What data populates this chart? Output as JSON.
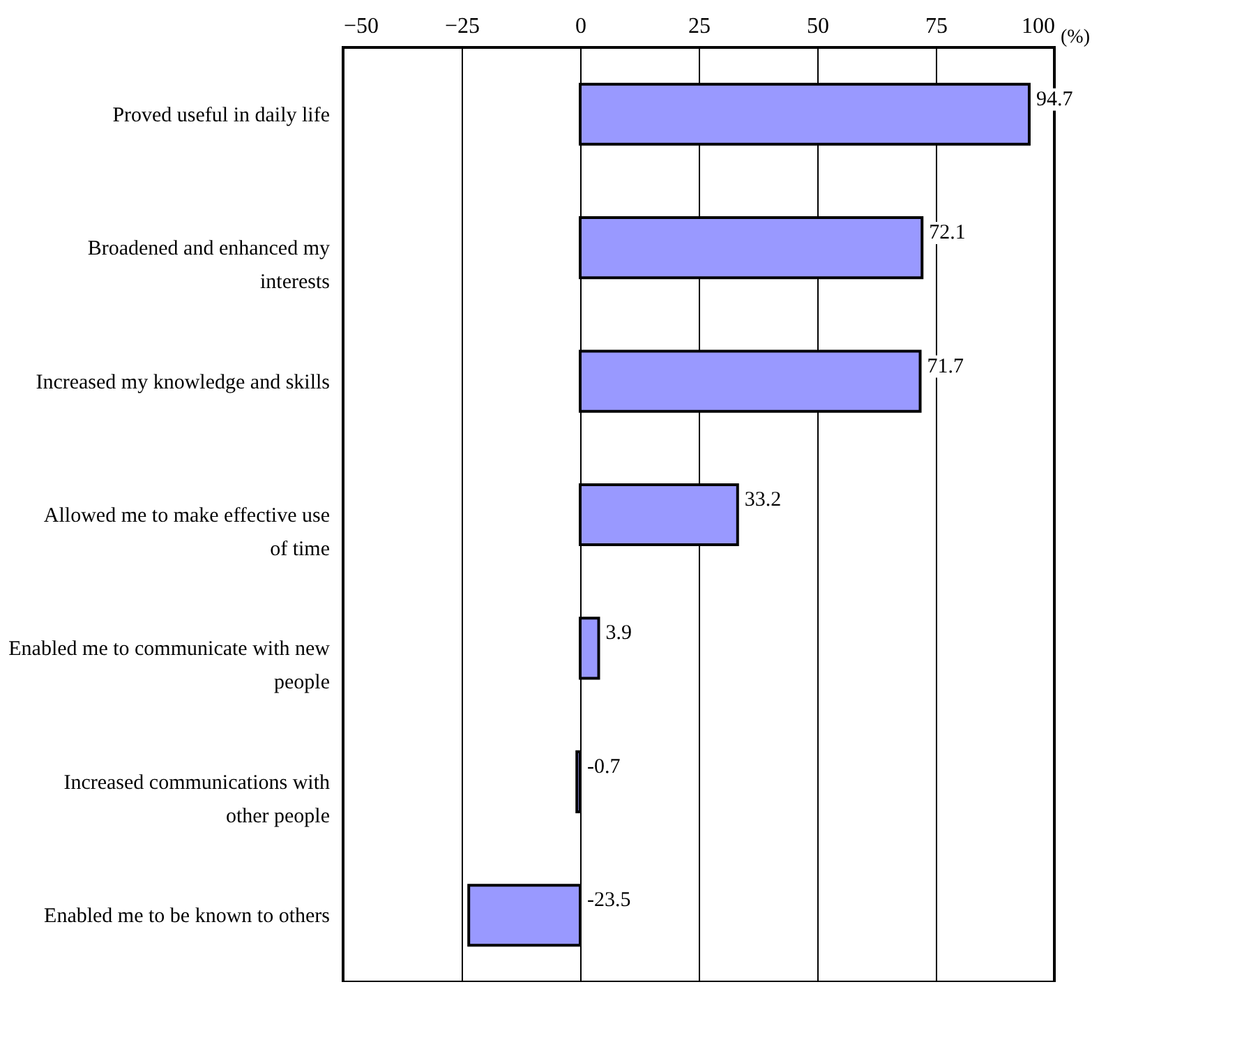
{
  "chart_data": {
    "type": "bar",
    "orientation": "horizontal",
    "xlabel": "(%)",
    "categories": [
      "Proved useful in daily life",
      "Broadened and enhanced my interests",
      "Increased my knowledge and skills",
      "Allowed me to make effective use of time",
      "Enabled me to communicate with new people",
      "Increased communications with other people",
      "Enabled me to be known to others"
    ],
    "values": [
      94.7,
      72.1,
      71.7,
      33.2,
      3.9,
      -0.7,
      -23.5
    ],
    "color": "#9999ff",
    "xlim": [
      -50,
      100
    ],
    "xticks": [
      -50,
      -25,
      0,
      25,
      50,
      75,
      100
    ],
    "grid": "x",
    "data_labels": true
  }
}
